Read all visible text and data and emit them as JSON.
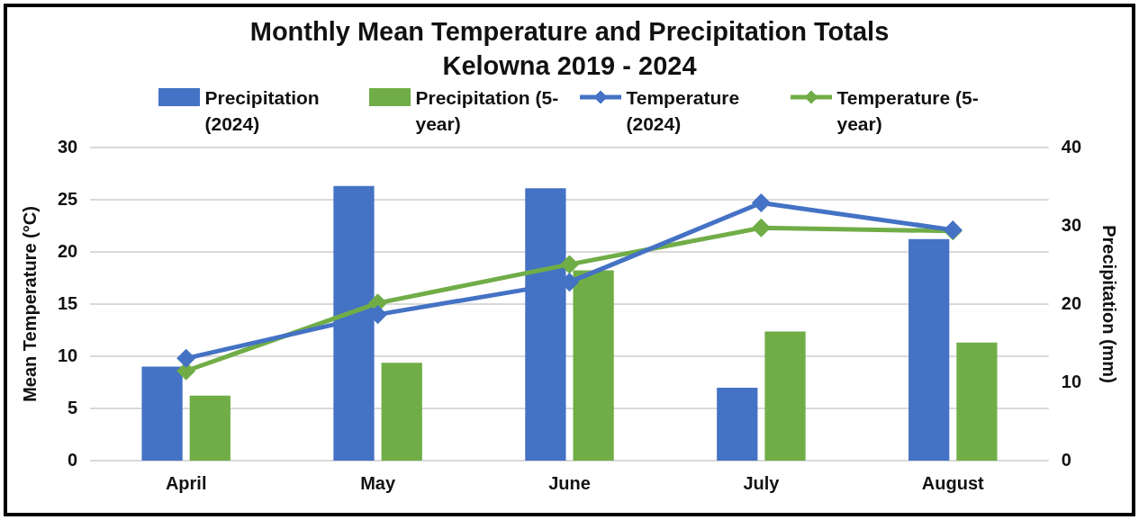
{
  "chart_data": {
    "type": "bar",
    "title": "Monthly Mean Temperature and Precipitation Totals",
    "subtitle": "Kelowna 2019 - 2024",
    "ylabel": "Mean Temperature (°C)",
    "y2label": "Precipitation (mm)",
    "categories": [
      "April",
      "May",
      "June",
      "July",
      "August"
    ],
    "series": [
      {
        "name": "Precipitation (2024)",
        "axis": "y2",
        "color": "#4472c4",
        "values": [
          12.0,
          35.1,
          34.8,
          9.3,
          28.3
        ]
      },
      {
        "name": "Precipitation (5-year)",
        "axis": "y2",
        "color": "#70ad47",
        "values": [
          8.3,
          12.5,
          24.3,
          16.5,
          15.1
        ]
      },
      {
        "name": "Temperature (2024)",
        "type": "line",
        "axis": "y",
        "color": "#4472c4",
        "values": [
          9.8,
          14.0,
          17.1,
          24.7,
          22.1
        ]
      },
      {
        "name": "Temperature (5-year)",
        "type": "line",
        "axis": "y",
        "color": "#70ad47",
        "values": [
          8.6,
          15.1,
          18.8,
          22.3,
          22.0
        ]
      }
    ],
    "ylim": [
      0,
      30
    ],
    "yticks": [
      0,
      5,
      10,
      15,
      20,
      25,
      30
    ],
    "y2lim": [
      0,
      40
    ],
    "y2ticks": [
      0,
      10,
      20,
      30,
      40
    ],
    "grid": "y",
    "legend": "top",
    "marker": "diamond",
    "line_style": "solid"
  }
}
